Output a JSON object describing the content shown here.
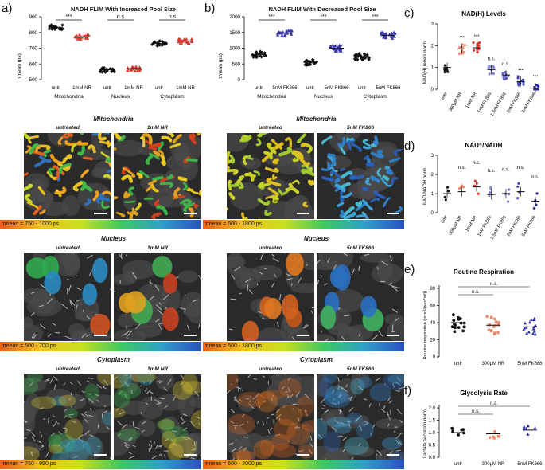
{
  "panels": {
    "a": {
      "letter": "a)",
      "title": "NADH FLIM With Increased Pool Size",
      "ylabel": "τmean (ps)",
      "yticks": [
        "500",
        "600",
        "700",
        "800",
        "900"
      ],
      "groups": [
        "Mitochondria",
        "Nucleus",
        "Cytoplasm"
      ],
      "conds": [
        "untr",
        "1mM NR",
        "untr",
        "1mM NR",
        "untr",
        "1mM NR"
      ],
      "sig": [
        "***",
        "n.s",
        "n.s"
      ]
    },
    "b": {
      "letter": "b)",
      "title": "NADH FLIM With Decreased Pool Size",
      "ylabel": "τmean (ps)",
      "yticks": [
        "0",
        "500",
        "1000",
        "1500",
        "2000"
      ],
      "groups": [
        "Mitochondria",
        "Nucleus",
        "Cytoplasm"
      ],
      "conds": [
        "untr",
        "5nM FK866",
        "untr",
        "5nM FK866",
        "untr",
        "5nM FK866"
      ],
      "sig": [
        "***",
        "***",
        "***"
      ]
    },
    "c": {
      "letter": "c)",
      "title": "NAD(H) Levels",
      "ylabel": "NAD(H) levels norm.",
      "yticks": [
        "0",
        "1",
        "2",
        "3"
      ],
      "conds": [
        "untr",
        "300µM NR",
        "1mM NR",
        "1nM FK866",
        "1.5nM FK866",
        "2nM FK866",
        "5nM FK866"
      ],
      "sig": [
        "",
        "***",
        "***",
        "n.s.",
        "n.s.",
        "***",
        "***"
      ]
    },
    "d": {
      "letter": "d)",
      "title": "NAD⁺/NADH",
      "ylabel": "NAD/NADH norm.",
      "yticks": [
        "0",
        "1",
        "2",
        "3"
      ],
      "conds": [
        "untr",
        "300µM NR",
        "1mM NR",
        "1nM FK866",
        "1.5nM FK866",
        "2nM FK866",
        "5nM FK866"
      ],
      "sig": [
        "",
        "n.s.",
        "n.s.",
        "n.s.",
        "n.s.",
        "n.s.",
        "n.s."
      ]
    },
    "e": {
      "letter": "e)",
      "title": "Routine Respiration",
      "ylabel": "Routine respiration (pmol/(sec*ml))",
      "yticks": [
        "0",
        "20",
        "40",
        "60",
        "80"
      ],
      "conds": [
        "untr",
        "300µM NR",
        "5nM FK866"
      ],
      "sig": [
        "n.s.",
        "n.s."
      ]
    },
    "f": {
      "letter": "f)",
      "title": "Glycolysis Rate",
      "ylabel": "Lactate secretion norm.",
      "yticks": [
        "0.0",
        "0.5",
        "1.0",
        "1.5",
        "2.0"
      ],
      "conds": [
        "untr",
        "300µM NR",
        "5nM FK866"
      ],
      "sig": [
        "n.s.",
        "n.s."
      ]
    }
  },
  "images": {
    "left": {
      "rows": [
        {
          "title": "Mitochondria",
          "caps": [
            "untreated",
            "1mM NR"
          ],
          "range": "τmean = 750 - 1000 ps"
        },
        {
          "title": "Nucleus",
          "caps": [
            "untreated",
            "1mM NR"
          ],
          "range": "τmean = 500 - 700 ps"
        },
        {
          "title": "Cytoplasm",
          "caps": [
            "untreated",
            "1mM NR"
          ],
          "range": "τmean = 750 - 950 ps"
        }
      ]
    },
    "right": {
      "rows": [
        {
          "title": "Mitochondria",
          "caps": [
            "untreated",
            "5nM FK866"
          ],
          "range": "τmean = 500 - 1800 ps"
        },
        {
          "title": "Nucleus",
          "caps": [
            "untreated",
            "5nM FK866"
          ],
          "range": "τmean = 500 - 1800 ps"
        },
        {
          "title": "Cytoplasm",
          "caps": [
            "untreated",
            "5nM FK866"
          ],
          "range": "τmean = 600 - 2000 ps"
        }
      ]
    }
  },
  "chart_data": [
    {
      "panel": "a",
      "type": "scatter",
      "title": "NADH FLIM With Increased Pool Size",
      "ylabel": "τmean (ps)",
      "ylim": [
        500,
        900
      ],
      "categories": [
        "Mitochondria untr",
        "Mitochondria 1mM NR",
        "Nucleus untr",
        "Nucleus 1mM NR",
        "Cytoplasm untr",
        "Cytoplasm 1mM NR"
      ],
      "values": [
        833,
        770,
        563,
        570,
        730,
        745
      ],
      "colors": [
        "#111111",
        "#e03a2e",
        "#111111",
        "#e03a2e",
        "#111111",
        "#e03a2e"
      ]
    },
    {
      "panel": "b",
      "type": "scatter",
      "title": "NADH FLIM With Decreased Pool Size",
      "ylabel": "τmean (ps)",
      "ylim": [
        0,
        2000
      ],
      "categories": [
        "Mitochondria untr",
        "Mitochondria 5nM FK866",
        "Nucleus untr",
        "Nucleus 5nM FK866",
        "Cytoplasm untr",
        "Cytoplasm 5nM FK866"
      ],
      "values": [
        800,
        1480,
        560,
        1000,
        740,
        1400
      ],
      "colors": [
        "#111111",
        "#3a3aaa",
        "#111111",
        "#3a3aaa",
        "#111111",
        "#3a3aaa"
      ]
    },
    {
      "panel": "c",
      "type": "scatter",
      "title": "NAD(H) Levels",
      "ylabel": "NAD(H) levels norm.",
      "ylim": [
        0,
        3
      ],
      "categories": [
        "untr",
        "300µM NR",
        "1mM NR",
        "1nM FK866",
        "1.5nM FK866",
        "2nM FK866",
        "5nM FK866"
      ],
      "values": [
        1.0,
        1.85,
        1.9,
        0.9,
        0.65,
        0.35,
        0.05
      ],
      "colors": [
        "#111111",
        "#f08a6a",
        "#e03a2e",
        "#8a8adc",
        "#6a6ad0",
        "#4a4ac0",
        "#2a2aa8"
      ]
    },
    {
      "panel": "d",
      "type": "scatter",
      "title": "NAD⁺/NADH",
      "ylabel": "NAD/NADH norm.",
      "ylim": [
        0,
        3
      ],
      "categories": [
        "untr",
        "300µM NR",
        "1mM NR",
        "1nM FK866",
        "1.5nM FK866",
        "2nM FK866",
        "5nM FK866"
      ],
      "values": [
        1.0,
        1.1,
        1.35,
        0.95,
        1.0,
        1.1,
        0.6
      ],
      "colors": [
        "#111111",
        "#f08a6a",
        "#e03a2e",
        "#8a8adc",
        "#6a6ad0",
        "#4a4ac0",
        "#2a2aa8"
      ]
    },
    {
      "panel": "e",
      "type": "scatter",
      "title": "Routine Respiration",
      "ylabel": "Routine respiration (pmol/(sec*ml))",
      "ylim": [
        0,
        80
      ],
      "categories": [
        "untr",
        "300µM NR",
        "5nM FK866"
      ],
      "values": [
        40,
        37,
        35
      ],
      "colors": [
        "#111111",
        "#f08a6a",
        "#2a2aa8"
      ]
    },
    {
      "panel": "f",
      "type": "scatter",
      "title": "Glycolysis Rate",
      "ylabel": "Lactate secretion norm.",
      "ylim": [
        0,
        2
      ],
      "categories": [
        "untr",
        "300µM NR",
        "5nM FK866"
      ],
      "values": [
        1.0,
        0.95,
        1.1
      ],
      "colors": [
        "#111111",
        "#f08a6a",
        "#2a2aa8"
      ]
    }
  ]
}
